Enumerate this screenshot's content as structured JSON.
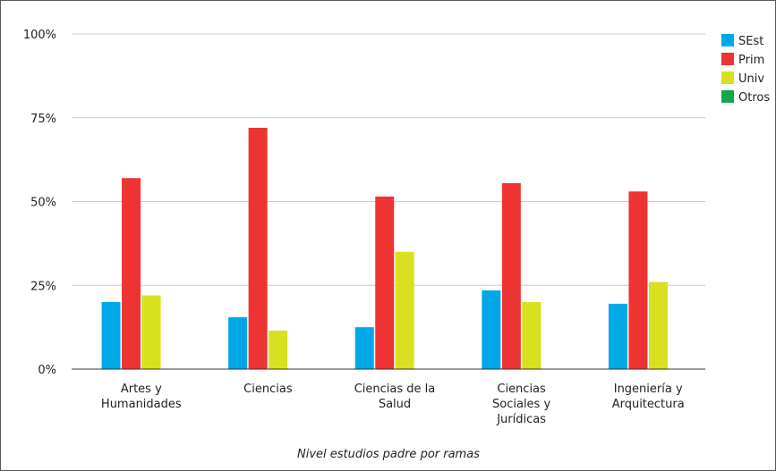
{
  "chart_data": {
    "type": "bar",
    "title": "",
    "xlabel": "Nivel estudios padre por ramas",
    "ylabel": "",
    "ylim": [
      0,
      100
    ],
    "yticks": [
      {
        "value": 0,
        "label": "0%"
      },
      {
        "value": 25,
        "label": "25%"
      },
      {
        "value": 50,
        "label": "50%"
      },
      {
        "value": 75,
        "label": "75%"
      },
      {
        "value": 100,
        "label": "100%"
      }
    ],
    "grid": true,
    "legend_position": "top-right",
    "categories": [
      [
        "Artes y",
        "Humanidades"
      ],
      [
        "Ciencias"
      ],
      [
        "Ciencias de la",
        "Salud"
      ],
      [
        "Ciencias",
        "Sociales y",
        "Jurídicas"
      ],
      [
        "Ingeniería y",
        "Arquitectura"
      ]
    ],
    "series": [
      {
        "name": "SEst",
        "color": "#00a8e8",
        "values": [
          20,
          15.5,
          12.5,
          23.5,
          19.5
        ]
      },
      {
        "name": "Prim",
        "color": "#ee3333",
        "values": [
          57,
          72,
          51.5,
          55.5,
          53
        ]
      },
      {
        "name": "Univ",
        "color": "#d8e020",
        "values": [
          22,
          11.5,
          35,
          20,
          26
        ]
      },
      {
        "name": "Otros",
        "color": "#13a84a",
        "values": [
          0,
          0,
          0,
          0,
          0
        ]
      }
    ]
  }
}
